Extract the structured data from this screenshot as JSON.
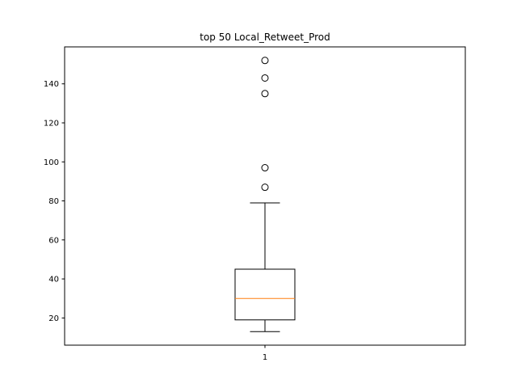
{
  "chart_data": {
    "type": "box",
    "title": "top 50 Local_Retweet_Prod",
    "xlabel": "",
    "ylabel": "",
    "categories": [
      "1"
    ],
    "ylim": [
      6.05,
      158.95
    ],
    "yticks": [
      20,
      40,
      60,
      80,
      100,
      120,
      140
    ],
    "boxes": [
      {
        "label": "1",
        "whisker_low": 13,
        "q1": 19,
        "median": 30,
        "q3": 45,
        "whisker_high": 79,
        "outliers": [
          87,
          97,
          135,
          143,
          152
        ]
      }
    ],
    "colors": {
      "box": "#000000",
      "median": "#ff7f0e",
      "outlier": "#000000"
    },
    "grid": false,
    "legend": "none"
  }
}
